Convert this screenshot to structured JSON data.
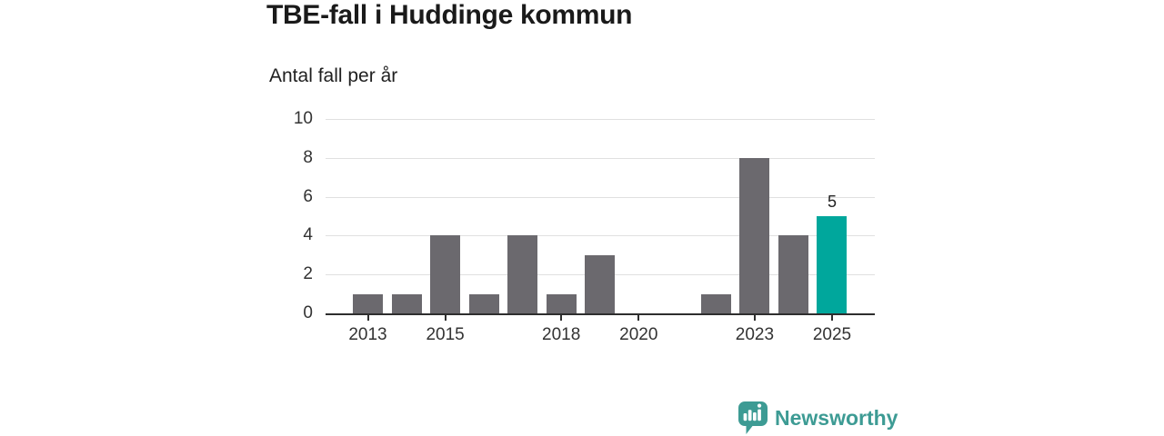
{
  "header": {
    "title": "TBE-fall i Huddinge kommun",
    "subtitle": "Antal fall per år"
  },
  "chart_data": {
    "type": "bar",
    "title": "TBE-fall i Huddinge kommun",
    "subtitle": "Antal fall per år",
    "xlabel": "",
    "ylabel": "Antal fall per år",
    "categories": [
      2013,
      2014,
      2015,
      2016,
      2017,
      2018,
      2019,
      2020,
      2021,
      2022,
      2023,
      2024,
      2025
    ],
    "values": [
      1,
      1,
      4,
      1,
      4,
      1,
      3,
      0,
      0,
      1,
      8,
      4,
      5
    ],
    "highlight_category": 2025,
    "highlight_value_label": "5",
    "y_ticks": [
      0,
      2,
      4,
      6,
      8,
      10
    ],
    "x_tick_years": [
      2013,
      2015,
      2018,
      2020,
      2023,
      2025
    ],
    "ylim": [
      0,
      10
    ],
    "grid": true,
    "legend": "none",
    "colors": {
      "bar": "#6b696e",
      "highlight": "#00a79c",
      "gridline": "#e0e0e0",
      "axis": "#2e2e2e",
      "text": "#333333"
    }
  },
  "footer": {
    "brand": "Newsworthy",
    "brand_color": "#3d9b94",
    "logo_icon": "newsworthy-chart-bubble-icon"
  }
}
